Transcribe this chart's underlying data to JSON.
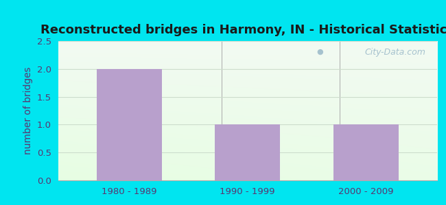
{
  "title": "Reconstructed bridges in Harmony, IN - Historical Statistics",
  "categories": [
    "1980 - 1989",
    "1990 - 1999",
    "2000 - 2009"
  ],
  "values": [
    2,
    1,
    1
  ],
  "bar_color": "#b8a0cc",
  "ylabel": "number of bridges",
  "ylim": [
    0,
    2.5
  ],
  "yticks": [
    0,
    0.5,
    1,
    1.5,
    2,
    2.5
  ],
  "bg_outer": "#00e5f0",
  "grid_color": "#ccddcc",
  "title_color": "#1a1a1a",
  "label_color": "#5a3570",
  "tick_color": "#5a3570",
  "watermark": "City-Data.com",
  "title_fontsize": 13,
  "ylabel_fontsize": 10
}
